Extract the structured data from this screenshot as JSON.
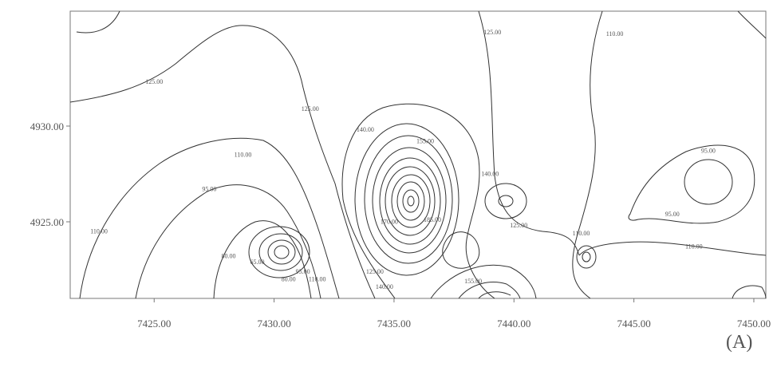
{
  "chart_data": {
    "type": "contour",
    "panel_label": "(A)",
    "xlim": [
      7421.5,
      7450.5
    ],
    "ylim": [
      4921.0,
      4936.0
    ],
    "x_ticks": [
      7425,
      7430,
      7435,
      7440,
      7445,
      7450
    ],
    "x_tick_labels": [
      "7425.00",
      "7430.00",
      "7435.00",
      "7440.00",
      "7445.00",
      "7450.00"
    ],
    "y_ticks": [
      4925,
      4930
    ],
    "y_tick_labels": [
      "4925.00",
      "4930.00"
    ],
    "contour_labels": [
      {
        "text": "125.00",
        "x": 7425.0,
        "y": 4932.2
      },
      {
        "text": "125.00",
        "x": 7431.5,
        "y": 4930.8
      },
      {
        "text": "125.00",
        "x": 7439.1,
        "y": 4934.8
      },
      {
        "text": "110.00",
        "x": 7444.2,
        "y": 4934.7
      },
      {
        "text": "140.00",
        "x": 7433.8,
        "y": 4929.7
      },
      {
        "text": "155.00",
        "x": 7436.3,
        "y": 4929.1
      },
      {
        "text": "140.00",
        "x": 7439.0,
        "y": 4927.4
      },
      {
        "text": "110.00",
        "x": 7428.7,
        "y": 4928.4
      },
      {
        "text": "95.00",
        "x": 7448.1,
        "y": 4928.6
      },
      {
        "text": "95.00",
        "x": 7427.3,
        "y": 4926.6
      },
      {
        "text": "110.00",
        "x": 7422.7,
        "y": 4924.4
      },
      {
        "text": "95.00",
        "x": 7446.6,
        "y": 4925.3
      },
      {
        "text": "125.00",
        "x": 7440.2,
        "y": 4924.7
      },
      {
        "text": "110.00",
        "x": 7442.8,
        "y": 4924.3
      },
      {
        "text": "110.00",
        "x": 7447.5,
        "y": 4923.6
      },
      {
        "text": "170.00",
        "x": 7434.8,
        "y": 4924.9
      },
      {
        "text": "185.00",
        "x": 7436.6,
        "y": 4925.0
      },
      {
        "text": "80.00",
        "x": 7428.1,
        "y": 4923.1
      },
      {
        "text": "65.00",
        "x": 7429.3,
        "y": 4922.8
      },
      {
        "text": "80.00",
        "x": 7430.6,
        "y": 4921.9
      },
      {
        "text": "95.00",
        "x": 7431.2,
        "y": 4922.3
      },
      {
        "text": "110.00",
        "x": 7431.8,
        "y": 4921.9
      },
      {
        "text": "125.00",
        "x": 7434.2,
        "y": 4922.3
      },
      {
        "text": "140.00",
        "x": 7434.6,
        "y": 4921.5
      },
      {
        "text": "155.00",
        "x": 7438.3,
        "y": 4921.8
      }
    ]
  }
}
